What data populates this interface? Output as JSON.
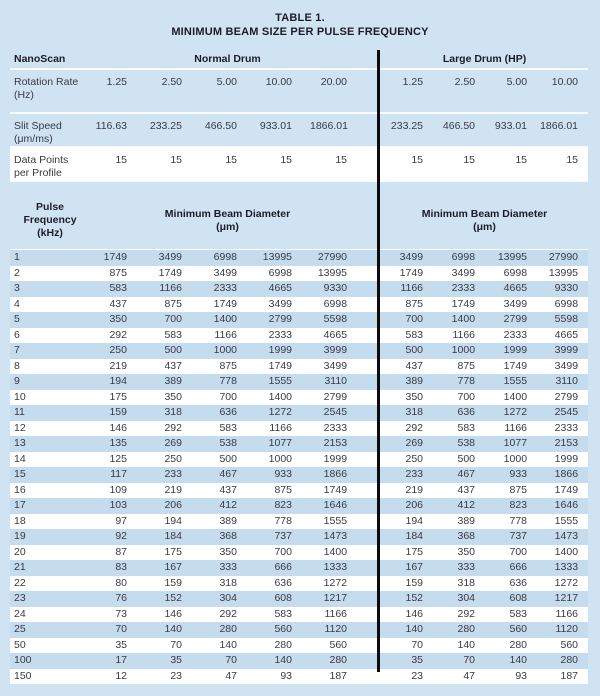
{
  "title": {
    "line1": "TABLE 1.",
    "line2": "MINIMUM BEAM SIZE PER PULSE FREQUENCY"
  },
  "colors": {
    "background": "#cfe3f2",
    "row_blue": "#c5dcee",
    "row_white": "#ffffff",
    "divider": "#0b0b10",
    "text": "#3a3a45",
    "heading": "#1c1c28"
  },
  "table": {
    "corner_label": "NanoScan",
    "sections": {
      "normal": "Normal Drum",
      "large": "Large Drum (HP)"
    },
    "spec_rows": [
      {
        "label": "Rotation Rate",
        "unit": "(Hz)",
        "normal": [
          "1.25",
          "2.50",
          "5.00",
          "10.00",
          "20.00"
        ],
        "large": [
          "1.25",
          "2.50",
          "5.00",
          "10.00"
        ],
        "highlight": false
      },
      {
        "label": "Slit Speed",
        "unit": "(μm/ms)",
        "normal": [
          "116.63",
          "233.25",
          "466.50",
          "933.01",
          "1866.01"
        ],
        "large": [
          "233.25",
          "466.50",
          "933.01",
          "1866.01"
        ],
        "highlight": false
      },
      {
        "label": "Data Points",
        "unit": "per Profile",
        "normal": [
          "15",
          "15",
          "15",
          "15",
          "15"
        ],
        "large": [
          "15",
          "15",
          "15",
          "15"
        ],
        "highlight": true
      }
    ],
    "column_header": {
      "freq_label": "Pulse Frequency",
      "freq_unit": "(kHz)",
      "beam_label": "Minimum Beam Diameter",
      "beam_unit": "(μm)"
    },
    "data_rows": [
      {
        "freq": "1",
        "normal": [
          "1749",
          "3499",
          "6998",
          "13995",
          "27990"
        ],
        "large": [
          "3499",
          "6998",
          "13995",
          "27990"
        ]
      },
      {
        "freq": "2",
        "normal": [
          "875",
          "1749",
          "3499",
          "6998",
          "13995"
        ],
        "large": [
          "1749",
          "3499",
          "6998",
          "13995"
        ]
      },
      {
        "freq": "3",
        "normal": [
          "583",
          "1166",
          "2333",
          "4665",
          "9330"
        ],
        "large": [
          "1166",
          "2333",
          "4665",
          "9330"
        ]
      },
      {
        "freq": "4",
        "normal": [
          "437",
          "875",
          "1749",
          "3499",
          "6998"
        ],
        "large": [
          "875",
          "1749",
          "3499",
          "6998"
        ]
      },
      {
        "freq": "5",
        "normal": [
          "350",
          "700",
          "1400",
          "2799",
          "5598"
        ],
        "large": [
          "700",
          "1400",
          "2799",
          "5598"
        ]
      },
      {
        "freq": "6",
        "normal": [
          "292",
          "583",
          "1166",
          "2333",
          "4665"
        ],
        "large": [
          "583",
          "1166",
          "2333",
          "4665"
        ]
      },
      {
        "freq": "7",
        "normal": [
          "250",
          "500",
          "1000",
          "1999",
          "3999"
        ],
        "large": [
          "500",
          "1000",
          "1999",
          "3999"
        ]
      },
      {
        "freq": "8",
        "normal": [
          "219",
          "437",
          "875",
          "1749",
          "3499"
        ],
        "large": [
          "437",
          "875",
          "1749",
          "3499"
        ]
      },
      {
        "freq": "9",
        "normal": [
          "194",
          "389",
          "778",
          "1555",
          "3110"
        ],
        "large": [
          "389",
          "778",
          "1555",
          "3110"
        ]
      },
      {
        "freq": "10",
        "normal": [
          "175",
          "350",
          "700",
          "1400",
          "2799"
        ],
        "large": [
          "350",
          "700",
          "1400",
          "2799"
        ]
      },
      {
        "freq": "11",
        "normal": [
          "159",
          "318",
          "636",
          "1272",
          "2545"
        ],
        "large": [
          "318",
          "636",
          "1272",
          "2545"
        ]
      },
      {
        "freq": "12",
        "normal": [
          "146",
          "292",
          "583",
          "1166",
          "2333"
        ],
        "large": [
          "292",
          "583",
          "1166",
          "2333"
        ]
      },
      {
        "freq": "13",
        "normal": [
          "135",
          "269",
          "538",
          "1077",
          "2153"
        ],
        "large": [
          "269",
          "538",
          "1077",
          "2153"
        ]
      },
      {
        "freq": "14",
        "normal": [
          "125",
          "250",
          "500",
          "1000",
          "1999"
        ],
        "large": [
          "250",
          "500",
          "1000",
          "1999"
        ]
      },
      {
        "freq": "15",
        "normal": [
          "117",
          "233",
          "467",
          "933",
          "1866"
        ],
        "large": [
          "233",
          "467",
          "933",
          "1866"
        ]
      },
      {
        "freq": "16",
        "normal": [
          "109",
          "219",
          "437",
          "875",
          "1749"
        ],
        "large": [
          "219",
          "437",
          "875",
          "1749"
        ]
      },
      {
        "freq": "17",
        "normal": [
          "103",
          "206",
          "412",
          "823",
          "1646"
        ],
        "large": [
          "206",
          "412",
          "823",
          "1646"
        ]
      },
      {
        "freq": "18",
        "normal": [
          "97",
          "194",
          "389",
          "778",
          "1555"
        ],
        "large": [
          "194",
          "389",
          "778",
          "1555"
        ]
      },
      {
        "freq": "19",
        "normal": [
          "92",
          "184",
          "368",
          "737",
          "1473"
        ],
        "large": [
          "184",
          "368",
          "737",
          "1473"
        ]
      },
      {
        "freq": "20",
        "normal": [
          "87",
          "175",
          "350",
          "700",
          "1400"
        ],
        "large": [
          "175",
          "350",
          "700",
          "1400"
        ]
      },
      {
        "freq": "21",
        "normal": [
          "83",
          "167",
          "333",
          "666",
          "1333"
        ],
        "large": [
          "167",
          "333",
          "666",
          "1333"
        ]
      },
      {
        "freq": "22",
        "normal": [
          "80",
          "159",
          "318",
          "636",
          "1272"
        ],
        "large": [
          "159",
          "318",
          "636",
          "1272"
        ]
      },
      {
        "freq": "23",
        "normal": [
          "76",
          "152",
          "304",
          "608",
          "1217"
        ],
        "large": [
          "152",
          "304",
          "608",
          "1217"
        ]
      },
      {
        "freq": "24",
        "normal": [
          "73",
          "146",
          "292",
          "583",
          "1166"
        ],
        "large": [
          "146",
          "292",
          "583",
          "1166"
        ]
      },
      {
        "freq": "25",
        "normal": [
          "70",
          "140",
          "280",
          "560",
          "1120"
        ],
        "large": [
          "140",
          "280",
          "560",
          "1120"
        ]
      },
      {
        "freq": "50",
        "normal": [
          "35",
          "70",
          "140",
          "280",
          "560"
        ],
        "large": [
          "70",
          "140",
          "280",
          "560"
        ]
      },
      {
        "freq": "100",
        "normal": [
          "17",
          "35",
          "70",
          "140",
          "280"
        ],
        "large": [
          "35",
          "70",
          "140",
          "280"
        ]
      },
      {
        "freq": "150",
        "normal": [
          "12",
          "23",
          "47",
          "93",
          "187"
        ],
        "large": [
          "23",
          "47",
          "93",
          "187"
        ]
      }
    ]
  }
}
